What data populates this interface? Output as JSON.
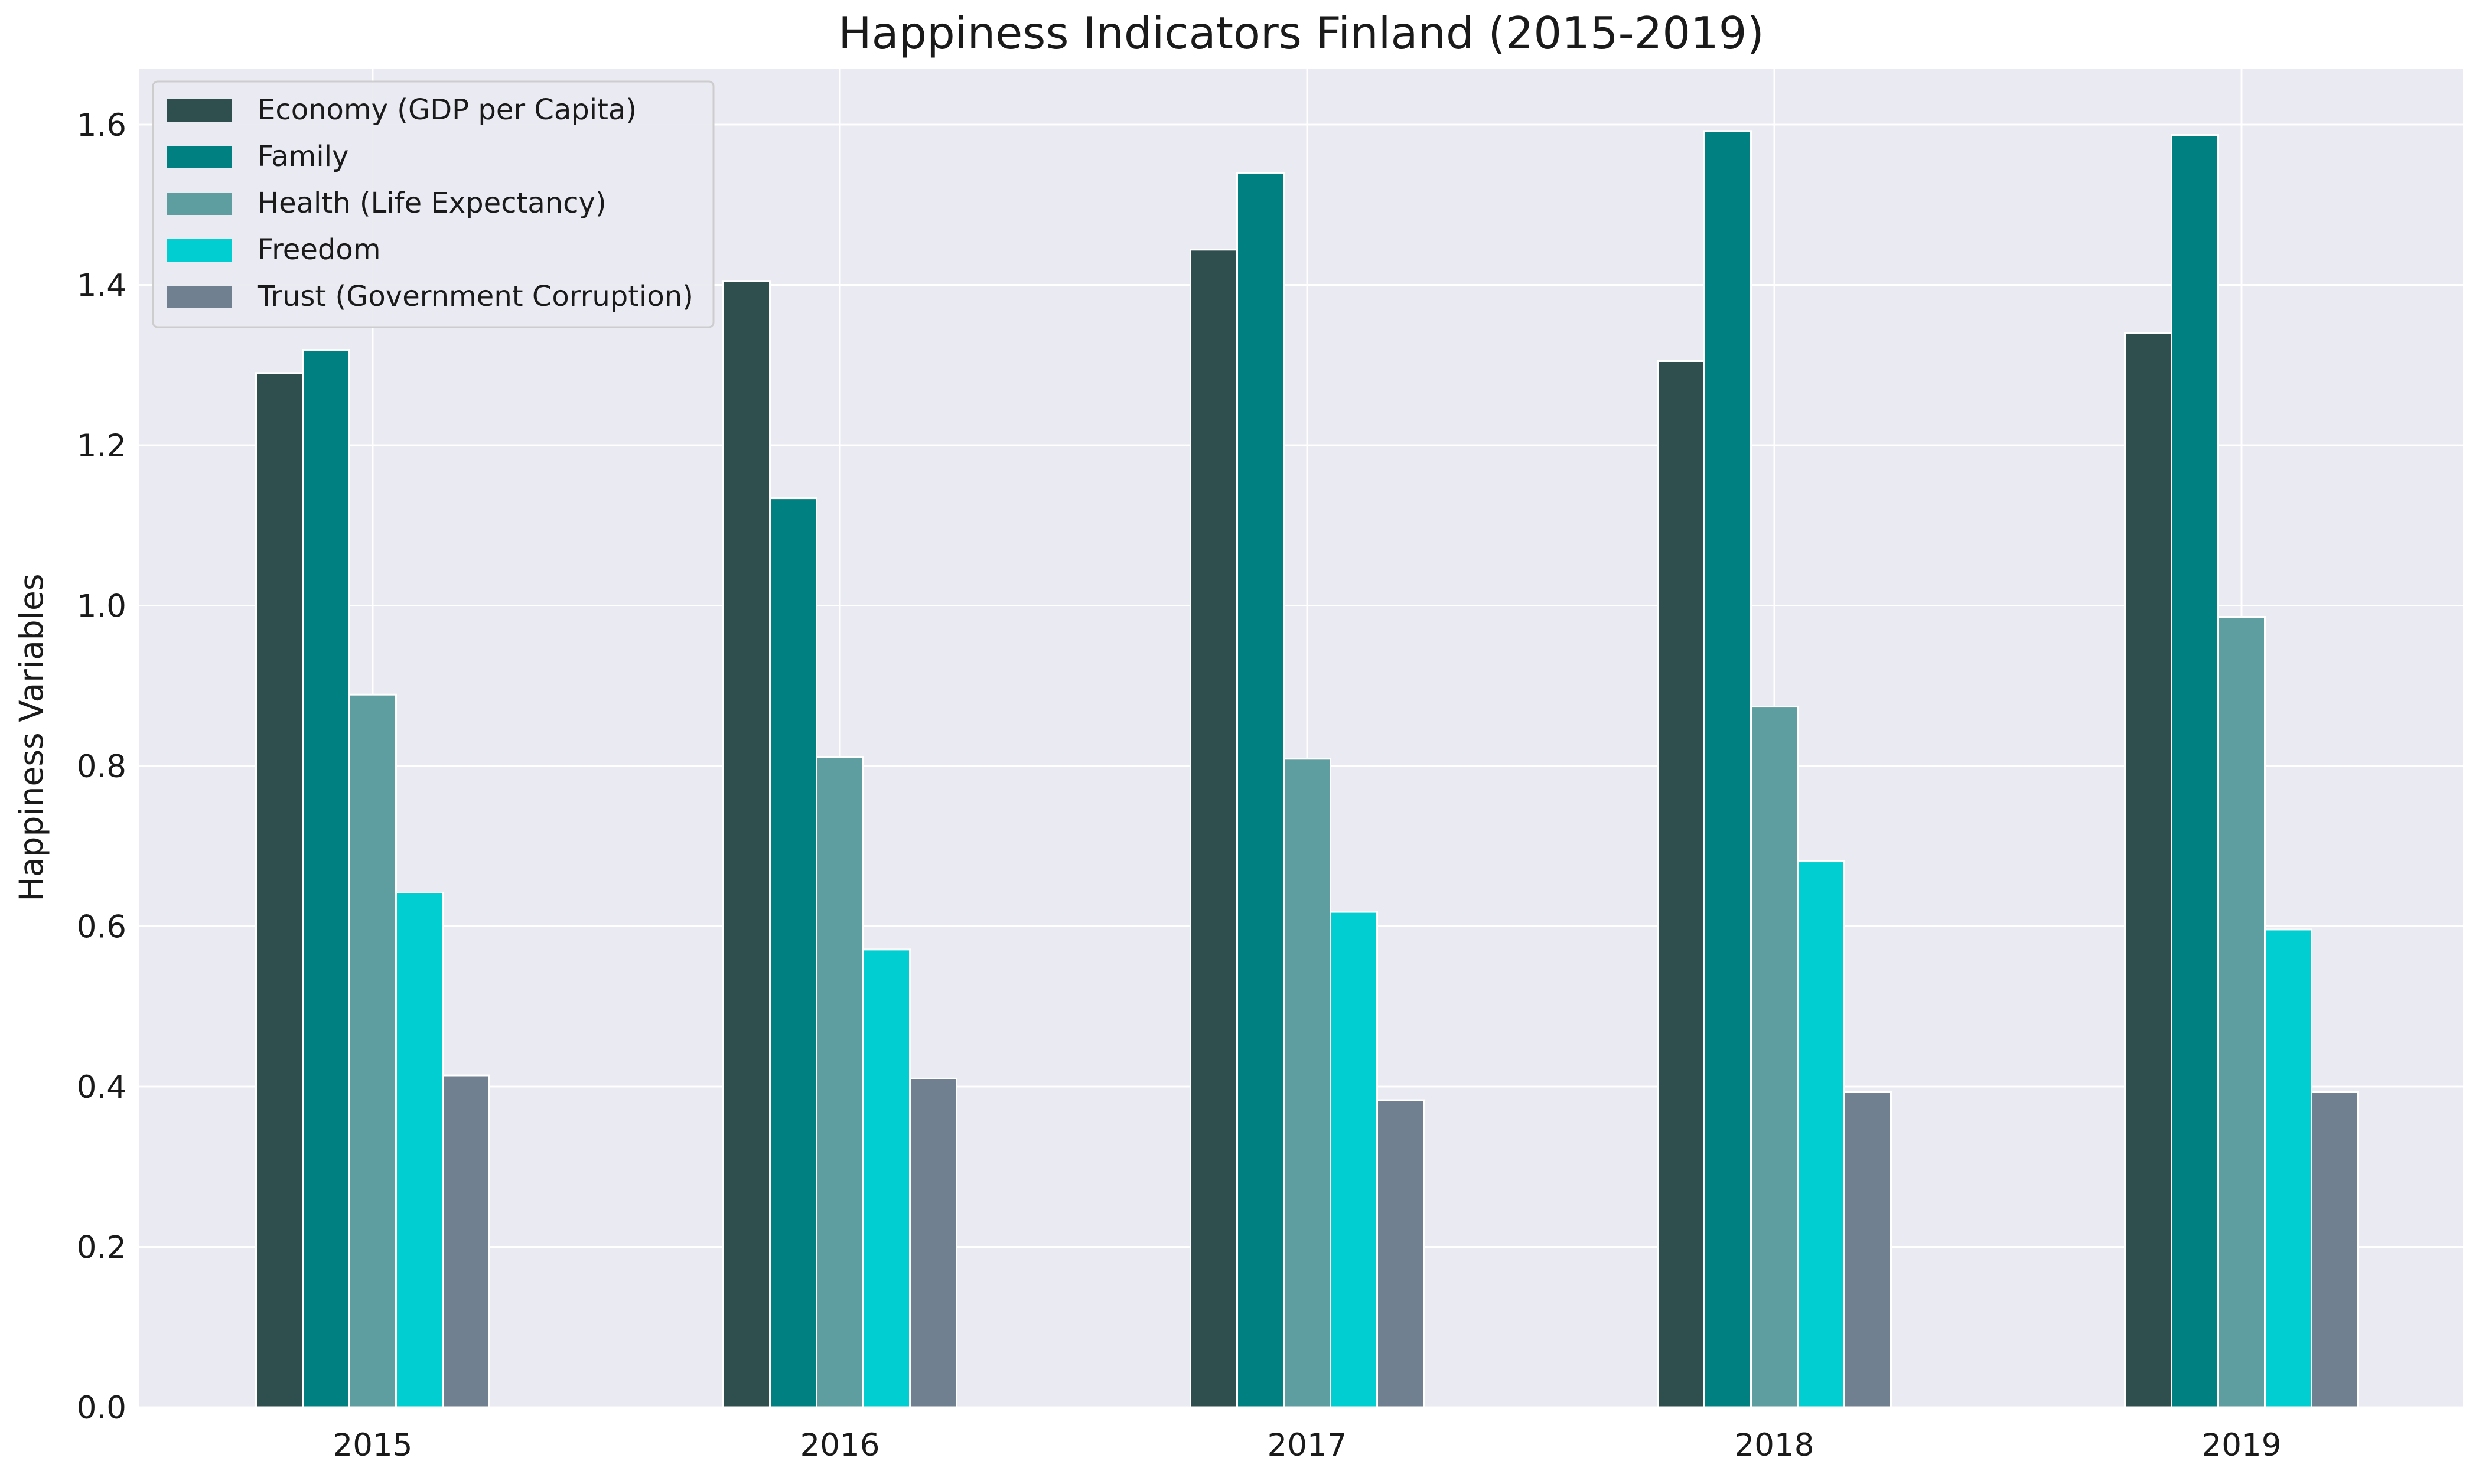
{
  "chart_data": {
    "type": "bar",
    "title": "Happiness Indicators Finland (2015-2019)",
    "xlabel": "",
    "ylabel": "Happiness Variables",
    "ylim": [
      0,
      1.67
    ],
    "yticks": [
      "0.0",
      "0.2",
      "0.4",
      "0.6",
      "0.8",
      "1.0",
      "1.2",
      "1.4",
      "1.6"
    ],
    "grid": true,
    "legend_position": "top-left",
    "categories": [
      "2015",
      "2016",
      "2017",
      "2018",
      "2019"
    ],
    "series": [
      {
        "name": "Economy (GDP per Capita)",
        "color": "#2f4f4f",
        "values": [
          1.29,
          1.405,
          1.444,
          1.305,
          1.34
        ]
      },
      {
        "name": "Family",
        "color": "#008080",
        "values": [
          1.319,
          1.134,
          1.54,
          1.592,
          1.587
        ]
      },
      {
        "name": "Health (Life Expectancy)",
        "color": "#5f9ea0",
        "values": [
          0.889,
          0.811,
          0.809,
          0.874,
          0.986
        ]
      },
      {
        "name": "Freedom",
        "color": "#00ced1",
        "values": [
          0.642,
          0.571,
          0.618,
          0.681,
          0.596
        ]
      },
      {
        "name": "Trust (Government Corruption)",
        "color": "#708090",
        "values": [
          0.414,
          0.41,
          0.383,
          0.393,
          0.393
        ]
      }
    ],
    "colors": {
      "plot_background": "#eaeaf2",
      "grid": "#ffffff"
    }
  }
}
